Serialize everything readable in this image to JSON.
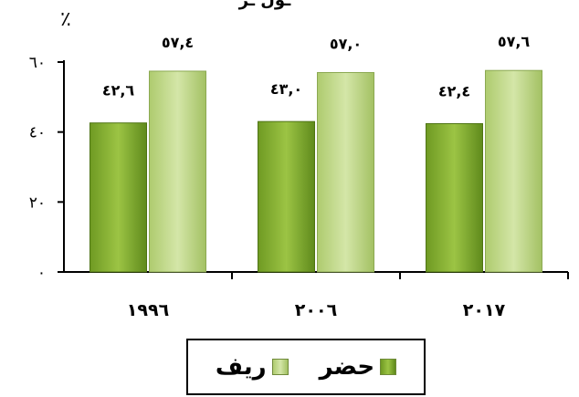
{
  "title_fragment": "ـول ـر",
  "chart_data": {
    "type": "bar",
    "title": "",
    "unit_label": "٪",
    "categories": [
      "١٩٩٦",
      "٢٠٠٦",
      "٢٠١٧"
    ],
    "ylim": [
      0,
      60
    ],
    "yticks": [
      {
        "value": 0,
        "label": "٠"
      },
      {
        "value": 20,
        "label": "٢٠"
      },
      {
        "value": 40,
        "label": "٤٠"
      },
      {
        "value": 60,
        "label": "٦٠"
      }
    ],
    "grid": false,
    "legend_position": "bottom",
    "series": [
      {
        "name": "حضر",
        "color": "#8fb43a",
        "values": [
          42.6,
          43.0,
          42.4
        ],
        "labels": [
          "٤٢,٦",
          "٤٣,٠",
          "٤٢,٤"
        ]
      },
      {
        "name": "ريف",
        "color": "#c5dc8e",
        "values": [
          57.4,
          57.0,
          57.6
        ],
        "labels": [
          "٥٧,٤",
          "٥٧,٠",
          "٥٧,٦"
        ]
      }
    ]
  }
}
